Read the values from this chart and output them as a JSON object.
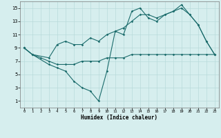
{
  "xlabel": "Humidex (Indice chaleur)",
  "background_color": "#d6eeee",
  "line_color": "#1a6b6b",
  "xlim": [
    -0.5,
    23.5
  ],
  "ylim": [
    0,
    16
  ],
  "xticks": [
    0,
    1,
    2,
    3,
    4,
    5,
    6,
    7,
    8,
    9,
    10,
    11,
    12,
    13,
    14,
    15,
    16,
    17,
    18,
    19,
    20,
    21,
    22,
    23
  ],
  "yticks": [
    1,
    3,
    5,
    7,
    9,
    11,
    13,
    15
  ],
  "grid_color": "#b8dada",
  "line1_x": [
    0,
    1,
    2,
    3,
    4,
    5,
    6,
    7,
    8,
    9,
    10,
    11,
    12,
    13,
    14,
    15,
    16,
    17,
    18,
    19,
    20,
    21,
    22,
    23
  ],
  "line1_y": [
    9,
    8,
    7.5,
    7,
    6.5,
    6.5,
    6.5,
    7,
    7,
    7,
    7.5,
    7.5,
    7.5,
    8,
    8,
    8,
    8,
    8,
    8,
    8,
    8,
    8,
    8,
    8
  ],
  "line2_x": [
    0,
    1,
    3,
    4,
    5,
    6,
    7,
    8,
    9,
    10,
    11,
    12,
    13,
    14,
    15,
    16,
    17,
    18,
    19,
    20,
    21,
    22,
    23
  ],
  "line2_y": [
    9,
    8,
    6.5,
    6,
    5.5,
    4,
    3,
    2.5,
    1,
    5.5,
    11.5,
    11,
    14.5,
    15,
    13.5,
    13,
    14,
    14.5,
    15,
    14,
    12.5,
    10,
    8
  ],
  "line3_x": [
    0,
    1,
    3,
    4,
    5,
    6,
    7,
    8,
    9,
    10,
    11,
    12,
    13,
    14,
    15,
    16,
    17,
    18,
    19,
    20,
    21,
    22,
    23
  ],
  "line3_y": [
    9,
    8,
    7.5,
    9.5,
    10,
    9.5,
    9.5,
    10.5,
    10,
    11,
    11.5,
    12,
    13,
    14,
    14,
    13.5,
    14,
    14.5,
    15.5,
    14,
    12.5,
    10,
    8
  ]
}
